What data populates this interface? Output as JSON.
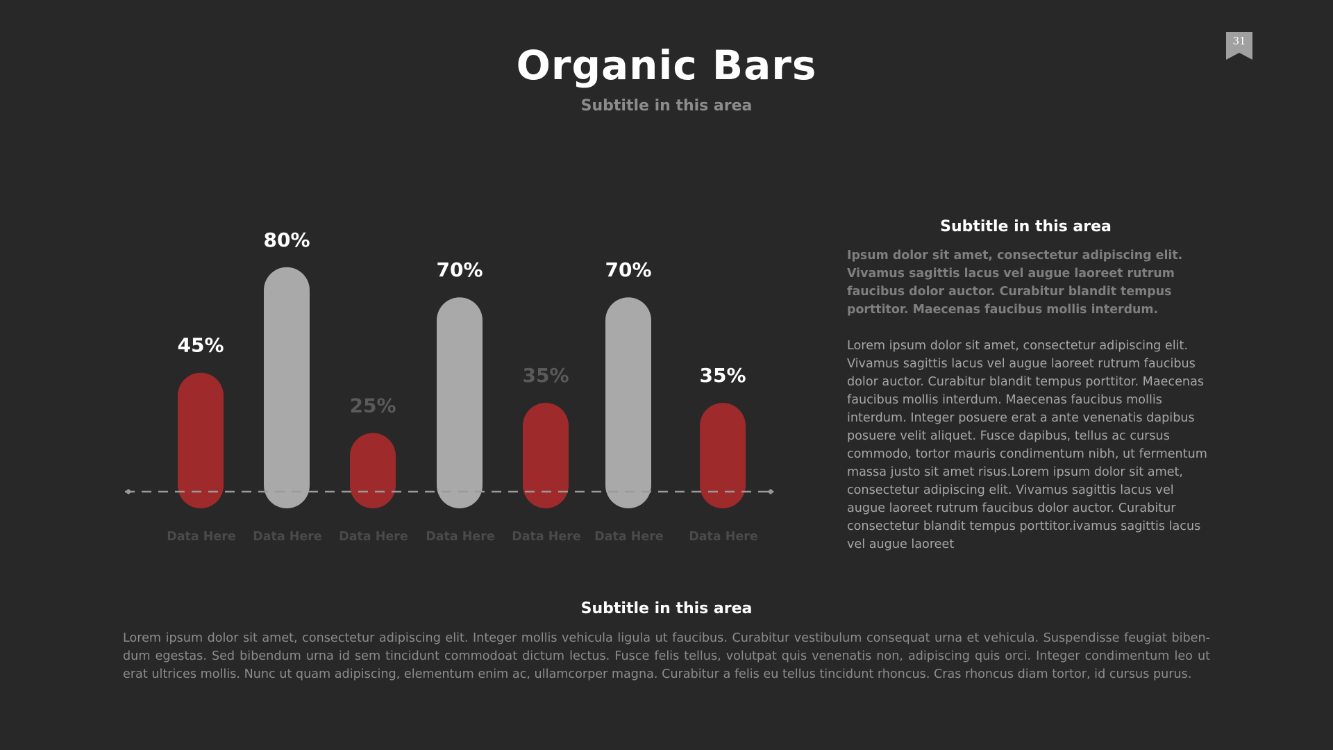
{
  "header": {
    "title": "Organic Bars",
    "subtitle": "Subtitle in this area",
    "page_number": "31"
  },
  "chart_data": {
    "type": "bar",
    "categories": [
      "Data Here",
      "Data Here",
      "Data Here",
      "Data Here",
      "Data Here",
      "Data Here",
      "Data Here"
    ],
    "values": [
      45,
      80,
      25,
      70,
      35,
      70,
      35
    ],
    "value_labels": [
      "45%",
      "80%",
      "25%",
      "70%",
      "35%",
      "70%",
      "35%"
    ],
    "bar_colors": [
      "#9e2a2b",
      "#a9a9a9",
      "#9e2a2b",
      "#a9a9a9",
      "#9e2a2b",
      "#a9a9a9",
      "#9e2a2b"
    ],
    "label_colors": [
      "#ffffff",
      "#ffffff",
      "#5a5a5a",
      "#ffffff",
      "#5a5a5a",
      "#ffffff",
      "#ffffff"
    ],
    "category_color": "#4a4a4a",
    "baseline_color": "#9a9a9a",
    "ylim": [
      0,
      100
    ],
    "title": "",
    "xlabel": "",
    "ylabel": "",
    "grid": false
  },
  "side_panel": {
    "subtitle": "Subtitle in this area",
    "bold_text": "Ipsum dolor sit amet, consectetur adipiscing elit. Vivamus sagittis lacus vel augue laoreet rutrum faucibus dolor auctor. Curabitur blandit tempus porttitor. Maecenas faucibus mollis interdum.",
    "body_text": "Lorem ipsum dolor sit amet, consectetur adipiscing elit. Vivamus sagittis lacus vel augue laoreet rutrum faucibus dolor auctor. Curabitur blandit tempus porttitor. Maecenas faucibus mollis interdum. Maecenas faucibus mollis interdum. Integer posuere erat a ante venenatis dapibus posuere velit aliquet. Fusce dapibus, tellus ac cursus commodo, tortor mauris condimentum nibh, ut fermentum massa justo sit amet risus.Lorem ipsum dolor sit amet, consectetur adipiscing elit. Vivamus sagittis lacus vel augue laoreet rutrum faucibus dolor auctor. Curabitur consectetur blandit tempus porttitor.ivamus sagittis lacus vel augue laoreet"
  },
  "bottom": {
    "subtitle": "Subtitle in this area",
    "body_text": "Lorem ipsum dolor sit amet, consectetur adipiscing elit. Integer mollis vehicula ligula ut faucibus. Curabitur vestibulum consequat urna et vehicula. Suspendisse feugiat biben- dum egestas. Sed bibendum urna id sem tincidunt commodoat dictum lectus. Fusce felis tellus, volutpat quis venenatis non, adipiscing quis orci. Integer condimentum leo ut erat ultrices mollis. Nunc ut quam adipiscing, elementum enim ac, ullamcorper magna. Curabitur a felis eu tellus tincidunt rhoncus. Cras rhoncus diam tortor, id cursus purus."
  }
}
